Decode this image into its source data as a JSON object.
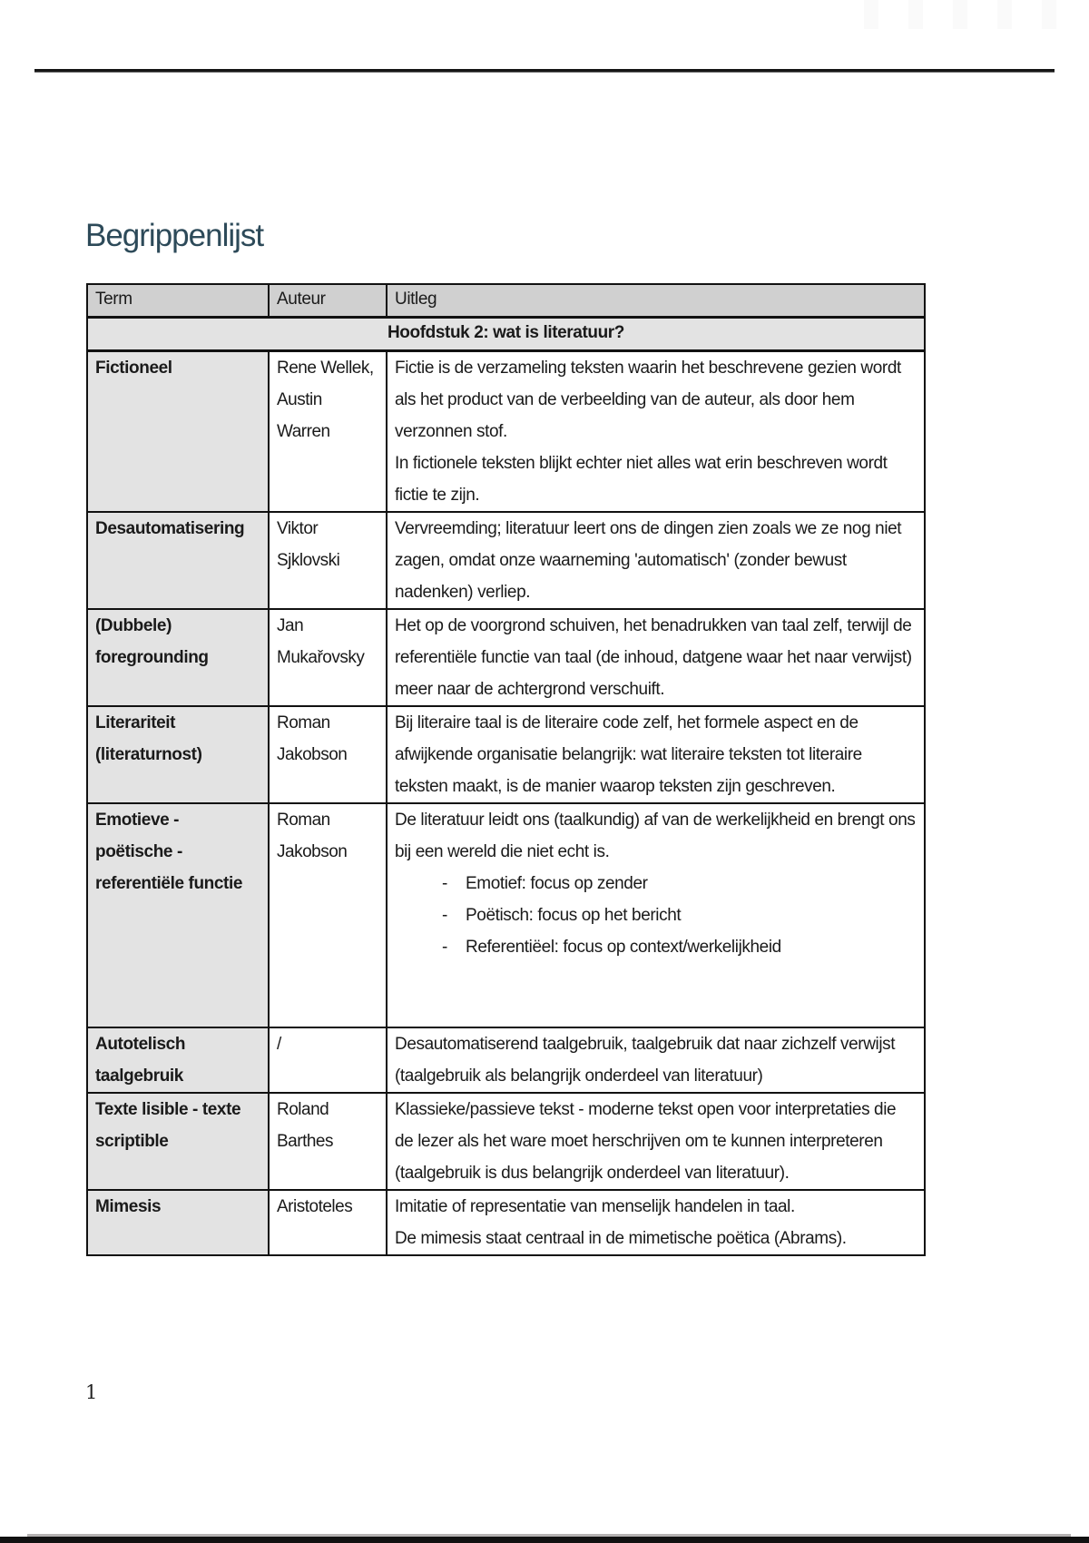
{
  "page": {
    "title": "Begrippenlijst",
    "page_number": "1"
  },
  "colors": {
    "title": "#2d4a59",
    "table_header_bg": "#d0d0d0",
    "section_header_bg": "#e3e3e3",
    "term_cell_bg": "#e3e3e3"
  },
  "table": {
    "headers": [
      "Term",
      "Auteur",
      "Uitleg"
    ],
    "section_header": "Hoofdstuk 2: wat is literatuur?",
    "rows": [
      {
        "term": "Fictioneel",
        "auteur": "Rene Wellek, Austin Warren",
        "uitleg_paragraphs": [
          "Fictie is de verzameling teksten waarin het beschrevene gezien wordt als het product van de verbeelding van de auteur, als door hem verzonnen stof.",
          "In fictionele teksten blijkt echter niet alles wat erin beschreven wordt fictie te zijn."
        ]
      },
      {
        "term": "Desautomatisering",
        "auteur": "Viktor Sjklovski",
        "uitleg_paragraphs": [
          "Vervreemding; literatuur leert ons de dingen zien zoals we ze nog niet zagen, omdat onze waarneming 'automatisch' (zonder bewust nadenken) verliep."
        ]
      },
      {
        "term": "(Dubbele) foregrounding",
        "auteur": "Jan Mukařovsky",
        "uitleg_paragraphs": [
          "Het op de voorgrond schuiven, het benadrukken van taal zelf, terwijl de referentiële functie van taal (de inhoud, datgene waar het naar verwijst) meer naar de achtergrond verschuift."
        ]
      },
      {
        "term": "Literariteit (literaturnost)",
        "auteur": "Roman Jakobson",
        "uitleg_paragraphs": [
          "Bij literaire taal is de literaire code zelf, het formele aspect en de afwijkende organisatie belangrijk: wat literaire teksten tot literaire teksten maakt, is de manier waarop teksten zijn geschreven."
        ]
      },
      {
        "term": "Emotieve - poëtische - referentiële functie",
        "auteur": "Roman Jakobson",
        "uitleg_paragraphs": [
          "De literatuur leidt ons (taalkundig) af van de werkelijkheid en brengt ons bij een wereld die niet echt is."
        ],
        "uitleg_bullets": [
          "Emotief: focus op zender",
          "Poëtisch: focus op het bericht",
          "Referentiëel: focus op context/werkelijkheid"
        ],
        "trailing_blank_lines": 2
      },
      {
        "term": "Autotelisch taalgebruik",
        "auteur": "/",
        "uitleg_paragraphs": [
          "Desautomatiserend taalgebruik, taalgebruik dat naar zichzelf verwijst (taalgebruik als belangrijk onderdeel van literatuur)"
        ]
      },
      {
        "term": "Texte lisible - texte scriptible",
        "auteur": "Roland Barthes",
        "uitleg_paragraphs": [
          "Klassieke/passieve tekst - moderne tekst open voor interpretaties die de lezer als het ware moet herschrijven om te kunnen interpreteren (taalgebruik is dus belangrijk onderdeel van literatuur)."
        ]
      },
      {
        "term": "Mimesis",
        "auteur": "Aristoteles",
        "uitleg_paragraphs": [
          "Imitatie of representatie van menselijk handelen in taal.",
          "De mimesis staat centraal in de mimetische poëtica (Abrams)."
        ]
      }
    ],
    "bullet_glyph": "-"
  }
}
